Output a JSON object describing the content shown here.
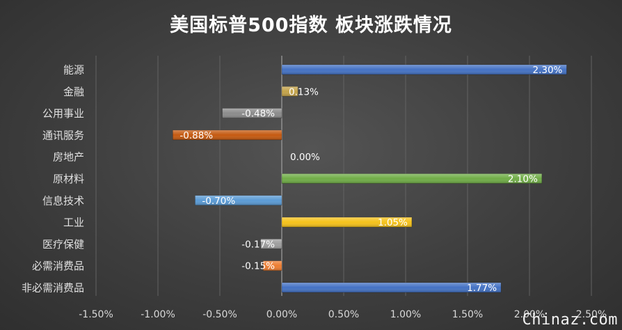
{
  "chart_data": {
    "type": "bar",
    "orientation": "horizontal",
    "title": "美国标普500指数 板块涨跌情况",
    "categories": [
      "能源",
      "金融",
      "公用事业",
      "通讯服务",
      "房地产",
      "原材料",
      "信息技术",
      "工业",
      "医疗保健",
      "必需消费品",
      "非必需消费品"
    ],
    "values": [
      2.3,
      0.13,
      -0.48,
      -0.88,
      0.0,
      2.1,
      -0.7,
      1.05,
      -0.17,
      -0.15,
      1.77
    ],
    "data_labels": [
      "2.30%",
      "0.13%",
      "-0.48%",
      "-0.88%",
      "0.00%",
      "2.10%",
      "-0.70%",
      "1.05%",
      "-0.17%",
      "-0.15%",
      "1.77%"
    ],
    "colors": [
      "#4472c4",
      "#c4a34a",
      "#8c8c8c",
      "#c55a11",
      "#4472c4",
      "#70ad47",
      "#5b9bd5",
      "#f5c21b",
      "#9e9e9e",
      "#ed7d31",
      "#4472c4"
    ],
    "xlim": [
      -1.5,
      2.5
    ],
    "xticks": [
      -1.5,
      -1.0,
      -0.5,
      0.0,
      0.5,
      1.0,
      1.5,
      2.0,
      2.5
    ],
    "xtick_labels": [
      "-1.50%",
      "-1.00%",
      "-0.50%",
      "0.00%",
      "0.50%",
      "1.00%",
      "1.50%",
      "2.00%",
      "2.50%"
    ],
    "grid": "vertical",
    "legend": "none"
  },
  "watermark": "Chinaz.com"
}
